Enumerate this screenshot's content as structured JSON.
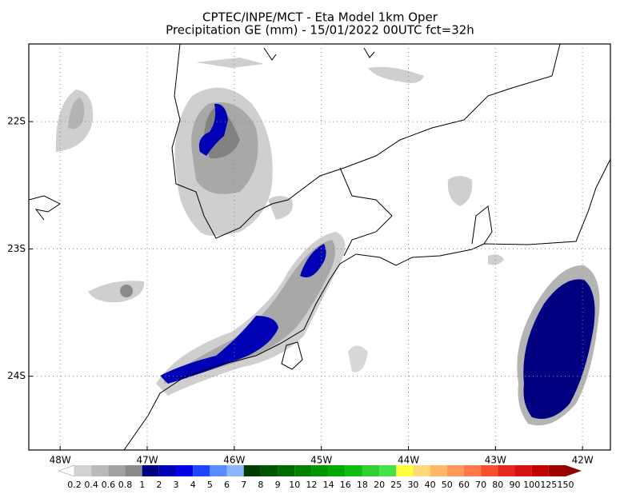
{
  "title": [
    "CPTEC/INPE/MCT -  Eta Model 1km Oper",
    "Precipitation GE (mm) - 15/01/2022 00UTC fct=32h"
  ],
  "map": {
    "xlim": [
      -48.36,
      -41.68
    ],
    "ylim": [
      -24.58,
      -21.39
    ],
    "xticks": [
      {
        "value": -48,
        "label": "48W"
      },
      {
        "value": -47,
        "label": "47W"
      },
      {
        "value": -46,
        "label": "46W"
      },
      {
        "value": -45,
        "label": "45W"
      },
      {
        "value": -44,
        "label": "44W"
      },
      {
        "value": -43,
        "label": "43W"
      },
      {
        "value": -42,
        "label": "42W"
      }
    ],
    "yticks": [
      {
        "value": -22,
        "label": "22S"
      },
      {
        "value": -23,
        "label": "23S"
      },
      {
        "value": -24,
        "label": "24S"
      }
    ],
    "grid": true
  },
  "colorbar": {
    "labels": [
      0.2,
      0.4,
      0.6,
      0.8,
      1,
      2,
      3,
      4,
      5,
      6,
      7,
      8,
      9,
      10,
      12,
      14,
      16,
      18,
      20,
      25,
      30,
      40,
      50,
      60,
      70,
      80,
      90,
      100,
      125,
      150
    ],
    "colors": [
      "#d2d2d2",
      "#bababa",
      "#a2a2a2",
      "#8a8a8a",
      "#000080",
      "#0000b4",
      "#0000e6",
      "#1e46ff",
      "#5a8cff",
      "#8cb4ff",
      "#003c00",
      "#005500",
      "#006c00",
      "#008200",
      "#009600",
      "#00aa00",
      "#10be10",
      "#30d030",
      "#48e048",
      "#ffff40",
      "#ffd878",
      "#ffb868",
      "#ff9858",
      "#ff7848",
      "#f45030",
      "#e42a20",
      "#d41414",
      "#c00000",
      "#a00000"
    ],
    "under_color": "#ffffff",
    "over_color": "#900000"
  }
}
